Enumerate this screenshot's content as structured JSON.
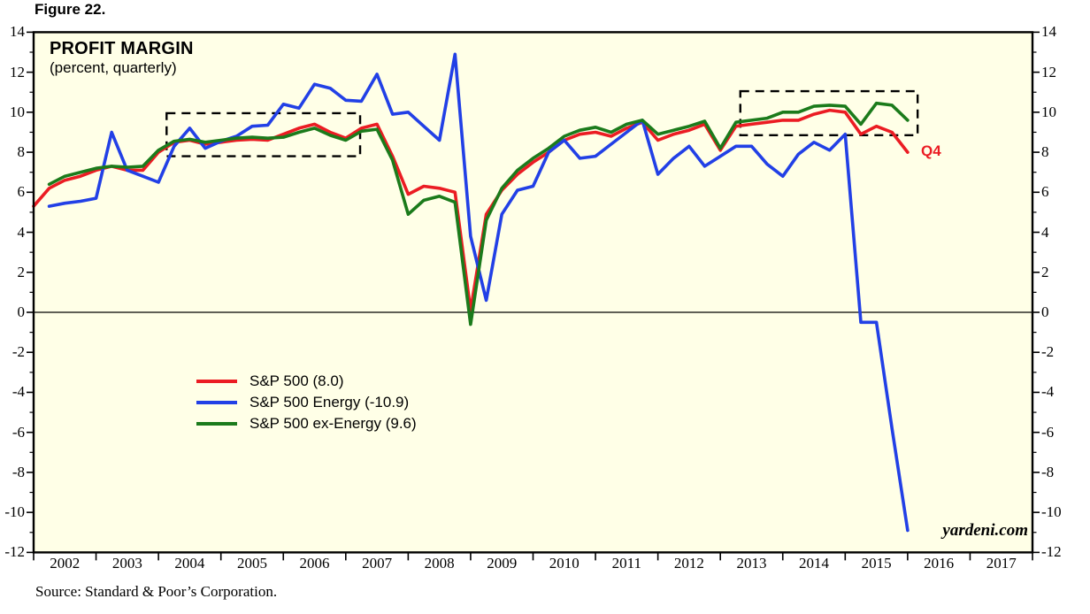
{
  "figure_label": "Figure 22.",
  "header": {
    "title": "PROFIT MARGIN",
    "subtitle": "(percent, quarterly)"
  },
  "watermark": "yardeni.com",
  "source_note": "Source: Standard & Poor’s Corporation.",
  "colors": {
    "plot_background": "#FFFFE7",
    "frame": "#000000",
    "red": "#EB1C23",
    "blue": "#2240E6",
    "green": "#1B7B1B",
    "annotation": "#000000"
  },
  "axes": {
    "y_min": -12,
    "y_max": 14,
    "y_major_ticks": [
      14,
      12,
      10,
      8,
      6,
      4,
      2,
      0,
      -2,
      -4,
      -6,
      -8,
      -10,
      -12
    ],
    "y_minor_ticks": [
      13,
      11,
      9,
      7,
      5,
      3,
      1,
      -1,
      -3,
      -5,
      -7,
      -9,
      -11
    ],
    "x_min": 2002,
    "x_max": 2018,
    "x_tick_years": [
      2002,
      2003,
      2004,
      2005,
      2006,
      2007,
      2008,
      2009,
      2010,
      2011,
      2012,
      2013,
      2014,
      2015,
      2016,
      2017,
      2018
    ],
    "x_band_labels": [
      "2002",
      "2003",
      "2004",
      "2005",
      "2006",
      "2007",
      "2008",
      "2009",
      "2010",
      "2011",
      "2012",
      "2013",
      "2014",
      "2015",
      "2016",
      "2017"
    ],
    "zero_line": true
  },
  "chart_data": {
    "type": "line",
    "title": "PROFIT MARGIN",
    "subtitle": "(percent, quarterly)",
    "x_unit": "decimal year, quarterly step 0.25 (last point = Q4 2015)",
    "ylim": [
      -12,
      14
    ],
    "xlim": [
      2002,
      2018
    ],
    "legend_position": "center-left",
    "series": [
      {
        "name": "sp500",
        "label": "S&P 500 (8.0)",
        "last_value": 8.0,
        "color": "#EB1C23",
        "x_start": 2002.0,
        "x_step": 0.25,
        "values": [
          5.3,
          6.2,
          6.6,
          6.8,
          7.1,
          7.3,
          7.1,
          7.1,
          8.0,
          8.5,
          8.6,
          8.4,
          8.5,
          8.6,
          8.65,
          8.6,
          8.9,
          9.2,
          9.4,
          9.0,
          8.7,
          9.2,
          9.4,
          7.8,
          5.9,
          6.3,
          6.2,
          6.0,
          0.1,
          4.9,
          6.1,
          6.9,
          7.5,
          8.0,
          8.6,
          8.9,
          9.0,
          8.8,
          9.2,
          9.5,
          8.6,
          8.9,
          9.1,
          9.4,
          8.1,
          9.3,
          9.4,
          9.5,
          9.6,
          9.6,
          9.9,
          10.1,
          10.0,
          8.9,
          9.3,
          9.0,
          8.0
        ]
      },
      {
        "name": "sp500-energy",
        "label": "S&P 500 Energy (-10.9)",
        "last_value": -10.9,
        "color": "#2240E6",
        "x_start": 2002.25,
        "x_step": 0.25,
        "values": [
          5.3,
          5.45,
          5.55,
          5.7,
          9.0,
          7.1,
          6.8,
          6.5,
          8.3,
          9.2,
          8.2,
          8.55,
          8.8,
          9.3,
          9.35,
          10.4,
          10.2,
          11.4,
          11.2,
          10.6,
          10.55,
          11.9,
          9.9,
          10.0,
          9.3,
          8.6,
          12.9,
          3.8,
          0.6,
          4.9,
          6.1,
          6.3,
          8.0,
          8.6,
          7.7,
          7.8,
          8.4,
          9.0,
          9.6,
          6.9,
          7.7,
          8.3,
          7.3,
          7.8,
          8.3,
          8.3,
          7.4,
          6.8,
          7.9,
          8.5,
          8.1,
          8.9,
          -0.5,
          -0.5,
          -5.8,
          -10.9
        ]
      },
      {
        "name": "sp500-ex-energy",
        "label": "S&P 500 ex-Energy (9.6)",
        "last_value": 9.6,
        "color": "#1B7B1B",
        "x_start": 2002.25,
        "x_step": 0.25,
        "values": [
          6.4,
          6.8,
          7.0,
          7.2,
          7.3,
          7.25,
          7.3,
          8.1,
          8.55,
          8.65,
          8.5,
          8.6,
          8.7,
          8.75,
          8.7,
          8.75,
          9.0,
          9.2,
          8.85,
          8.6,
          9.05,
          9.15,
          7.6,
          4.9,
          5.6,
          5.8,
          5.5,
          -0.6,
          4.6,
          6.2,
          7.1,
          7.7,
          8.2,
          8.8,
          9.1,
          9.25,
          9.0,
          9.4,
          9.6,
          8.9,
          9.1,
          9.3,
          9.55,
          8.2,
          9.5,
          9.6,
          9.7,
          10.0,
          10.0,
          10.3,
          10.35,
          10.3,
          9.4,
          10.45,
          10.35,
          9.6
        ]
      }
    ],
    "annotations": {
      "dashed_boxes": [
        {
          "x1": 2004.13,
          "x2": 2007.23,
          "y1": 7.8,
          "y2": 9.95
        },
        {
          "x1": 2013.32,
          "x2": 2016.16,
          "y1": 8.85,
          "y2": 11.05
        }
      ],
      "q4_label": {
        "text": "Q4",
        "x": 2016.2,
        "y": 8.35,
        "color": "#EB1C23"
      }
    }
  }
}
